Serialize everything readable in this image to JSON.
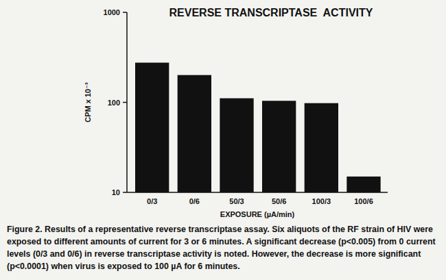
{
  "chart_data": {
    "type": "bar",
    "title": "REVERSE TRANSCRIPTASE  ACTIVITY",
    "x_label": "EXPOSURE (µA/min)",
    "y_label": "CPM x 10⁻³",
    "categories": [
      "0/3",
      "0/6",
      "50/3",
      "50/6",
      "100/3",
      "100/6"
    ],
    "values": [
      276,
      201,
      111,
      104,
      98,
      15
    ],
    "color": "#111111",
    "log": "y",
    "ylim": [
      10,
      1000
    ],
    "yticks": [
      10,
      100,
      1000
    ],
    "grid": false,
    "caption": "Figure 2. Results of a representative reverse transcriptase assay. Six aliquots of the RF strain of HIV were exposed to different amounts of current for 3 or 6 minutes. A significant decrease (p<0.005) from 0 current levels (0/3 and 0/6) in reverse transcriptase activity is noted. However, the decrease is more significant (p<0.0001) when virus is exposed to 100 µA for 6 minutes."
  }
}
